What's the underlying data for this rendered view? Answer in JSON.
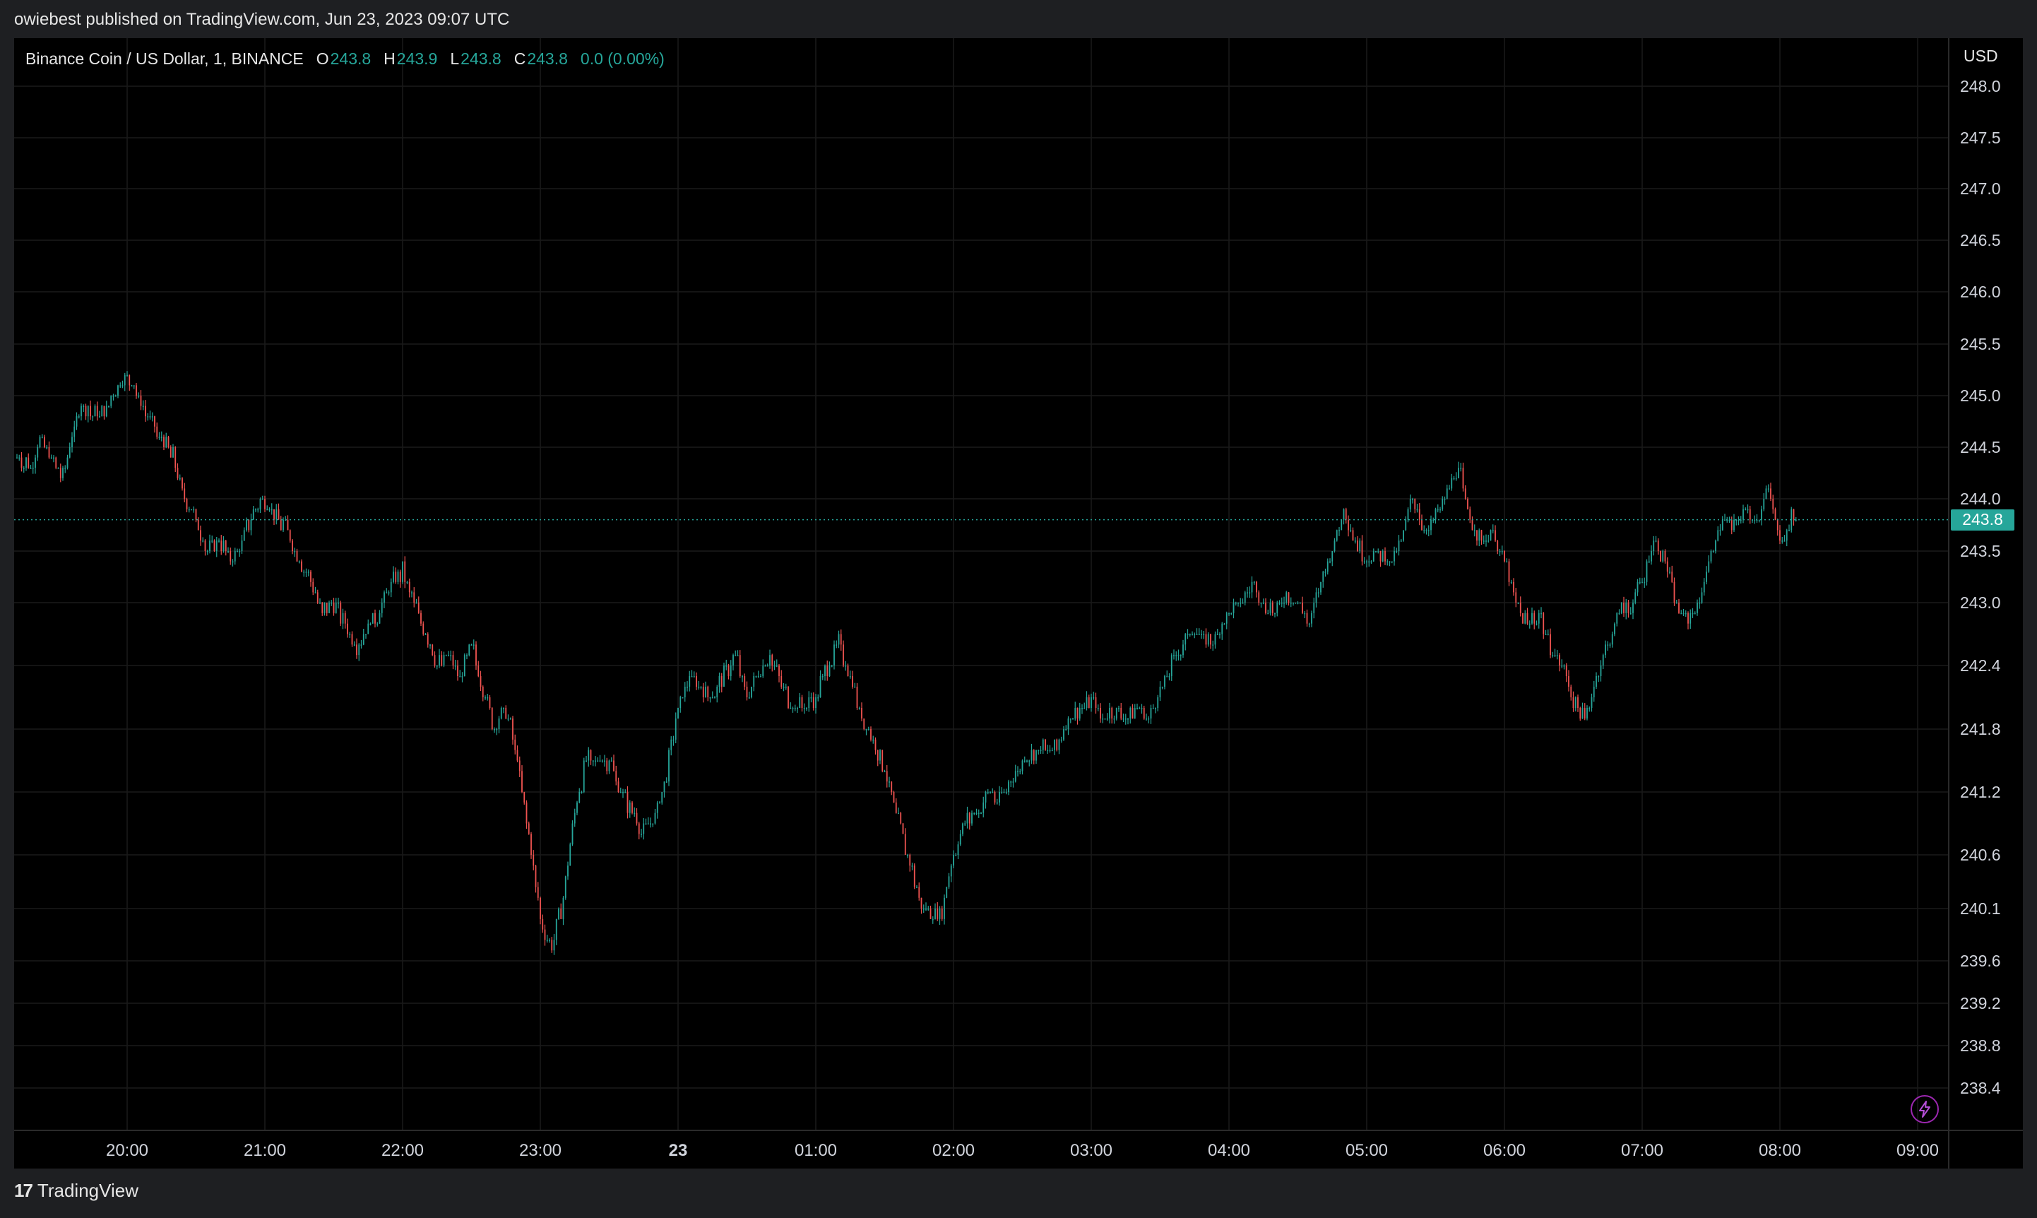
{
  "header": {
    "published": "owiebest published on TradingView.com, Jun 23, 2023 09:07 UTC"
  },
  "legend": {
    "symbol": "Binance Coin / US Dollar, 1, BINANCE",
    "o_label": "O",
    "o_value": "243.8",
    "h_label": "H",
    "h_value": "243.9",
    "l_label": "L",
    "l_value": "243.8",
    "c_label": "C",
    "c_value": "243.8",
    "change": "0.0 (0.00%)"
  },
  "price_scale": {
    "currency": "USD",
    "last_price": "243.8"
  },
  "footer": {
    "brand": "TradingView",
    "logo_mark": "17"
  },
  "icons": {
    "lightning": "lightning-icon"
  },
  "colors": {
    "up": "#26a69a",
    "down": "#ef5350",
    "background": "#000000",
    "grid": "#1a1a1a",
    "accent": "#9c27b0"
  },
  "chart_data": {
    "type": "candlestick",
    "title": "Binance Coin / US Dollar, 1, BINANCE",
    "interval": "1",
    "exchange": "BINANCE",
    "currency": "USD",
    "y_ticks": [
      "248.0",
      "247.5",
      "247.0",
      "246.5",
      "246.0",
      "245.5",
      "245.0",
      "244.5",
      "244.0",
      "243.5",
      "243.0",
      "242.4",
      "241.8",
      "241.2",
      "240.6",
      "240.1",
      "239.6",
      "239.2",
      "238.8",
      "238.4"
    ],
    "x_ticks": [
      "20:00",
      "21:00",
      "22:00",
      "23:00",
      "23",
      "01:00",
      "02:00",
      "03:00",
      "04:00",
      "05:00",
      "06:00",
      "07:00",
      "08:00",
      "09:00"
    ],
    "x_ticks_bold": [
      "23"
    ],
    "last_price": 243.8,
    "grid": true,
    "close_path": [
      [
        "19:12",
        244.4
      ],
      [
        "19:18",
        244.3
      ],
      [
        "19:22",
        244.6
      ],
      [
        "19:27",
        244.4
      ],
      [
        "19:32",
        244.2
      ],
      [
        "19:36",
        244.6
      ],
      [
        "19:40",
        244.9
      ],
      [
        "19:48",
        244.8
      ],
      [
        "19:54",
        245.0
      ],
      [
        "20:00",
        245.2
      ],
      [
        "20:05",
        245.0
      ],
      [
        "20:08",
        244.8
      ],
      [
        "20:14",
        244.6
      ],
      [
        "20:20",
        244.4
      ],
      [
        "20:25",
        244.0
      ],
      [
        "20:30",
        243.8
      ],
      [
        "20:35",
        243.5
      ],
      [
        "20:40",
        243.6
      ],
      [
        "20:45",
        243.4
      ],
      [
        "20:50",
        243.6
      ],
      [
        "20:55",
        243.9
      ],
      [
        "21:00",
        244.0
      ],
      [
        "21:05",
        243.8
      ],
      [
        "21:10",
        243.7
      ],
      [
        "21:15",
        243.4
      ],
      [
        "21:20",
        243.2
      ],
      [
        "21:25",
        242.9
      ],
      [
        "21:30",
        243.0
      ],
      [
        "21:35",
        242.8
      ],
      [
        "21:40",
        242.6
      ],
      [
        "21:45",
        242.8
      ],
      [
        "21:50",
        242.9
      ],
      [
        "21:55",
        243.2
      ],
      [
        "22:00",
        243.3
      ],
      [
        "22:05",
        243.0
      ],
      [
        "22:10",
        242.7
      ],
      [
        "22:15",
        242.4
      ],
      [
        "22:20",
        242.5
      ],
      [
        "22:25",
        242.3
      ],
      [
        "22:30",
        242.6
      ],
      [
        "22:35",
        242.2
      ],
      [
        "22:40",
        241.8
      ],
      [
        "22:45",
        242.0
      ],
      [
        "22:50",
        241.5
      ],
      [
        "22:55",
        240.8
      ],
      [
        "23:00",
        240.0
      ],
      [
        "23:05",
        239.7
      ],
      [
        "23:10",
        240.2
      ],
      [
        "23:15",
        241.0
      ],
      [
        "23:20",
        241.5
      ],
      [
        "23:25",
        241.5
      ],
      [
        "23:30",
        241.5
      ],
      [
        "23:35",
        241.2
      ],
      [
        "23:40",
        241.0
      ],
      [
        "23:45",
        240.8
      ],
      [
        "23:50",
        241.0
      ],
      [
        "23:55",
        241.4
      ],
      [
        "24:00",
        242.0
      ],
      [
        "24:05",
        242.3
      ],
      [
        "24:10",
        242.2
      ],
      [
        "24:15",
        242.1
      ],
      [
        "24:20",
        242.3
      ],
      [
        "24:25",
        242.5
      ],
      [
        "24:30",
        242.1
      ],
      [
        "24:35",
        242.3
      ],
      [
        "24:40",
        242.5
      ],
      [
        "24:45",
        242.2
      ],
      [
        "24:50",
        242.0
      ],
      [
        "24:55",
        242.0
      ],
      [
        "25:00",
        242.1
      ],
      [
        "25:05",
        242.4
      ],
      [
        "25:10",
        242.6
      ],
      [
        "25:15",
        242.3
      ],
      [
        "25:20",
        241.9
      ],
      [
        "25:25",
        241.7
      ],
      [
        "25:30",
        241.4
      ],
      [
        "25:35",
        241.0
      ],
      [
        "25:40",
        240.6
      ],
      [
        "25:45",
        240.2
      ],
      [
        "25:50",
        240.0
      ],
      [
        "25:55",
        240.1
      ],
      [
        "26:00",
        240.6
      ],
      [
        "26:05",
        240.9
      ],
      [
        "26:10",
        241.0
      ],
      [
        "26:15",
        241.2
      ],
      [
        "26:20",
        241.1
      ],
      [
        "26:25",
        241.3
      ],
      [
        "26:30",
        241.5
      ],
      [
        "26:35",
        241.6
      ],
      [
        "26:40",
        241.6
      ],
      [
        "26:45",
        241.6
      ],
      [
        "26:50",
        241.9
      ],
      [
        "26:55",
        242.0
      ],
      [
        "27:00",
        242.1
      ],
      [
        "27:05",
        241.9
      ],
      [
        "27:10",
        242.0
      ],
      [
        "27:15",
        241.9
      ],
      [
        "27:20",
        242.0
      ],
      [
        "27:25",
        241.9
      ],
      [
        "27:30",
        242.2
      ],
      [
        "27:35",
        242.4
      ],
      [
        "27:40",
        242.6
      ],
      [
        "27:45",
        242.8
      ],
      [
        "27:50",
        242.6
      ],
      [
        "27:55",
        242.7
      ],
      [
        "28:00",
        242.9
      ],
      [
        "28:05",
        243.0
      ],
      [
        "28:10",
        243.2
      ],
      [
        "28:15",
        243.0
      ],
      [
        "28:20",
        242.9
      ],
      [
        "28:25",
        243.1
      ],
      [
        "28:30",
        243.0
      ],
      [
        "28:35",
        242.8
      ],
      [
        "28:40",
        243.2
      ],
      [
        "28:45",
        243.5
      ],
      [
        "28:50",
        243.9
      ],
      [
        "28:55",
        243.6
      ],
      [
        "29:00",
        243.4
      ],
      [
        "29:05",
        243.5
      ],
      [
        "29:10",
        243.4
      ],
      [
        "29:15",
        243.6
      ],
      [
        "29:20",
        244.0
      ],
      [
        "29:25",
        243.7
      ],
      [
        "29:30",
        243.8
      ],
      [
        "29:35",
        244.1
      ],
      [
        "29:40",
        244.3
      ],
      [
        "29:45",
        243.8
      ],
      [
        "29:50",
        243.6
      ],
      [
        "29:55",
        243.7
      ],
      [
        "30:00",
        243.4
      ],
      [
        "30:05",
        243.0
      ],
      [
        "30:10",
        242.8
      ],
      [
        "30:15",
        242.9
      ],
      [
        "30:20",
        242.6
      ],
      [
        "30:25",
        242.4
      ],
      [
        "30:30",
        242.1
      ],
      [
        "30:35",
        241.9
      ],
      [
        "30:40",
        242.3
      ],
      [
        "30:45",
        242.6
      ],
      [
        "30:50",
        242.9
      ],
      [
        "30:55",
        243.0
      ],
      [
        "31:00",
        243.2
      ],
      [
        "31:05",
        243.6
      ],
      [
        "31:10",
        243.4
      ],
      [
        "31:15",
        243.0
      ],
      [
        "31:20",
        242.8
      ],
      [
        "31:25",
        243.0
      ],
      [
        "31:30",
        243.5
      ],
      [
        "31:35",
        243.8
      ],
      [
        "31:40",
        243.7
      ],
      [
        "31:45",
        243.9
      ],
      [
        "31:50",
        243.8
      ],
      [
        "31:55",
        244.1
      ],
      [
        "32:00",
        243.6
      ],
      [
        "32:05",
        243.8
      ],
      [
        "32:07",
        243.8
      ]
    ]
  }
}
